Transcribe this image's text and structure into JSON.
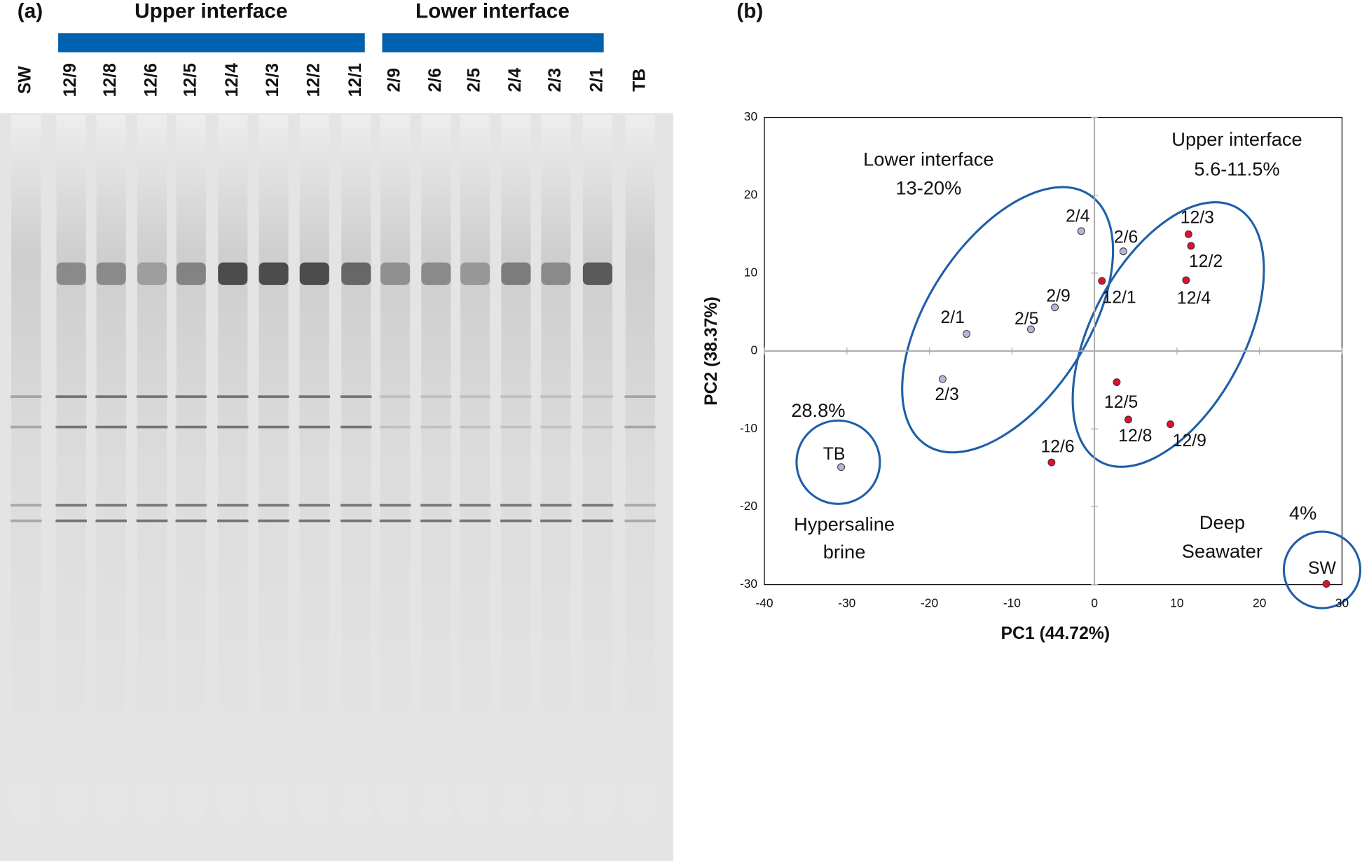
{
  "gel": {
    "panel_label": "(a)",
    "groups": [
      "Upper interface",
      "Lower interface"
    ],
    "lanes": [
      "SW",
      "12/9",
      "12/8",
      "12/6",
      "12/5",
      "12/4",
      "12/3",
      "12/2",
      "12/1",
      "2/9",
      "2/6",
      "2/5",
      "2/4",
      "2/3",
      "2/1",
      "TB"
    ]
  },
  "chart_data": {
    "type": "scatter",
    "panel_label": "(b)",
    "x_label": "PC1 (44.72%)",
    "y_label": "PC2 (38.37%)",
    "xlim": [
      -40,
      30
    ],
    "ylim": [
      -30,
      30
    ],
    "xticks": [
      -40,
      -30,
      -20,
      -10,
      0,
      10,
      20,
      30
    ],
    "yticks": [
      -30,
      -20,
      -10,
      0,
      10,
      20,
      30
    ],
    "series": [
      {
        "color": "#e0102c",
        "labels": [
          "12/3",
          "12/2",
          "12/4",
          "12/1",
          "12/5",
          "12/8",
          "12/9",
          "12/6",
          "SW"
        ],
        "x": [
          11.4,
          11.7,
          11.1,
          0.9,
          2.7,
          4.1,
          9.2,
          -5.2,
          28.1
        ],
        "y": [
          15.0,
          13.5,
          9.1,
          9.0,
          -4.0,
          -8.8,
          -9.4,
          -14.3,
          -29.9
        ]
      },
      {
        "color": "#b4b4dc",
        "labels": [
          "2/4",
          "2/6",
          "2/9",
          "2/5",
          "2/1",
          "2/3",
          "TB"
        ],
        "x": [
          -1.6,
          3.5,
          -4.8,
          -7.7,
          -15.5,
          -18.4,
          -30.7
        ],
        "y": [
          15.4,
          12.8,
          5.6,
          2.8,
          2.2,
          -3.6,
          -14.9
        ]
      }
    ],
    "annotations": [
      "Lower interface",
      "13-20%",
      "Upper interface",
      "5.6-11.5%",
      "28.8%",
      "Hypersaline",
      "brine",
      "Deep",
      "Seawater",
      "4%"
    ]
  }
}
